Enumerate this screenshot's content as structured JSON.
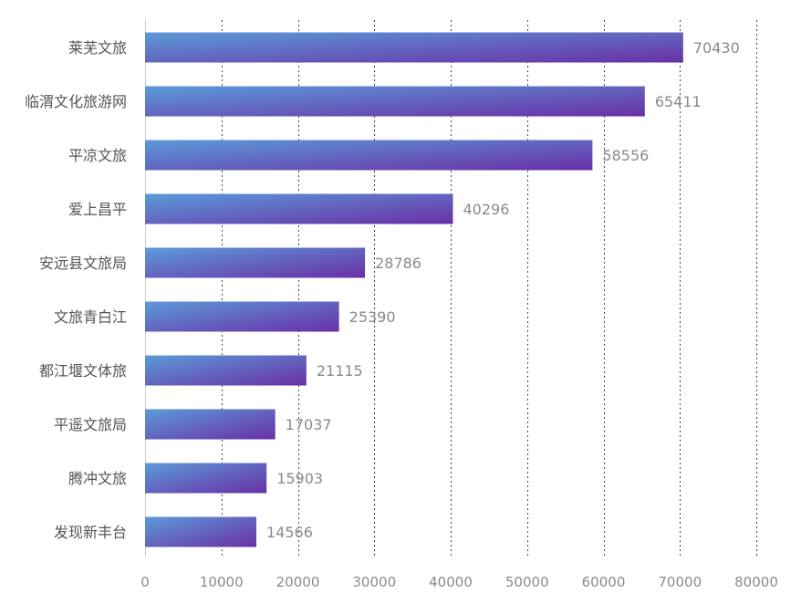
{
  "chart_data": {
    "type": "bar",
    "orientation": "horizontal",
    "categories": [
      "莱芜文旅",
      "临渭文化旅游网",
      "平凉文旅",
      "爱上昌平",
      "安远县文旅局",
      "文旅青白江",
      "都江堰文体旅",
      "平遥文旅局",
      "腾冲文旅",
      "发现新丰台"
    ],
    "values": [
      70430,
      65411,
      58556,
      40296,
      28786,
      25390,
      21115,
      17037,
      15903,
      14566
    ],
    "xlim": [
      0,
      80000
    ],
    "x_ticks": [
      0,
      10000,
      20000,
      30000,
      40000,
      50000,
      60000,
      70000,
      80000
    ],
    "title": "",
    "xlabel": "",
    "ylabel": "",
    "grid": "vertical-dotted",
    "legend": "none",
    "data_labels": true
  },
  "colors": {
    "bar_gradient_start": "#5b9bd9",
    "bar_gradient_end": "#6a2fa6",
    "category_text": "#555555",
    "tick_text": "#8a8a8a",
    "value_text": "#8a8a8a"
  }
}
